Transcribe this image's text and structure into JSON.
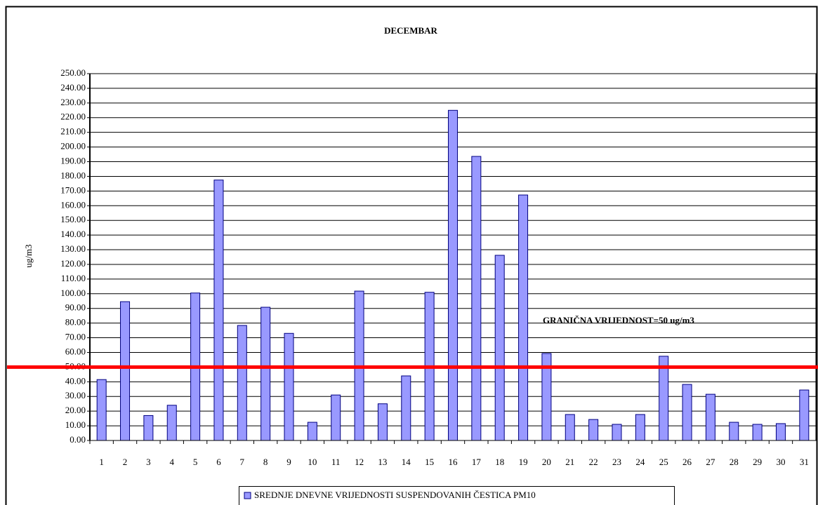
{
  "chart_data": {
    "type": "bar",
    "title": "DECEMBAR",
    "y_label": "ug/m3",
    "categories": [
      "1",
      "2",
      "3",
      "4",
      "5",
      "6",
      "7",
      "8",
      "9",
      "10",
      "11",
      "12",
      "13",
      "14",
      "15",
      "16",
      "17",
      "18",
      "19",
      "20",
      "21",
      "22",
      "23",
      "24",
      "25",
      "26",
      "27",
      "28",
      "29",
      "30",
      "31"
    ],
    "series": [
      {
        "name": "SREDNJE DNEVNE VRIJEDNOSTI SUSPENDOVANIH ČESTICA PM10",
        "color": "#9999ff",
        "values": [
          41.5,
          94.6,
          17,
          24,
          100.5,
          177.5,
          78.4,
          90.8,
          73,
          12.4,
          31,
          101.8,
          25,
          44,
          101,
          225,
          193.6,
          126.2,
          167.3,
          59.3,
          17.7,
          14.3,
          11,
          17.7,
          57.4,
          38.2,
          31.5,
          12.4,
          11,
          11.5,
          34.4
        ]
      }
    ],
    "ylim": [
      0,
      250
    ],
    "yticks": [
      {
        "value": 0,
        "label": "0.00"
      },
      {
        "value": 10,
        "label": "10.00"
      },
      {
        "value": 20,
        "label": "20.00"
      },
      {
        "value": 30,
        "label": "30.00"
      },
      {
        "value": 40,
        "label": "40.00"
      },
      {
        "value": 50,
        "label": "50.00"
      },
      {
        "value": 60,
        "label": "60.00"
      },
      {
        "value": 70,
        "label": "70.00"
      },
      {
        "value": 80,
        "label": "80.00"
      },
      {
        "value": 90,
        "label": "90.00"
      },
      {
        "value": 100,
        "label": "100.00"
      },
      {
        "value": 110,
        "label": "110.00"
      },
      {
        "value": 120,
        "label": "120.00"
      },
      {
        "value": 130,
        "label": "130.00"
      },
      {
        "value": 140,
        "label": "140.00"
      },
      {
        "value": 150,
        "label": "150.00"
      },
      {
        "value": 160,
        "label": "160.00"
      },
      {
        "value": 170,
        "label": "170.00"
      },
      {
        "value": 180,
        "label": "180.00"
      },
      {
        "value": 190,
        "label": "190.00"
      },
      {
        "value": 200,
        "label": "200.00"
      },
      {
        "value": 210,
        "label": "210.00"
      },
      {
        "value": 220,
        "label": "220.00"
      },
      {
        "value": 230,
        "label": "230.00"
      },
      {
        "value": 240,
        "label": "240.00"
      },
      {
        "value": 250,
        "label": "250.00"
      }
    ],
    "grid": true,
    "threshold": {
      "value": 50,
      "label": "GRANIČNA VRIJEDNOST=50 ug/m3",
      "color": "#ff0000"
    },
    "legend": "bottom"
  }
}
